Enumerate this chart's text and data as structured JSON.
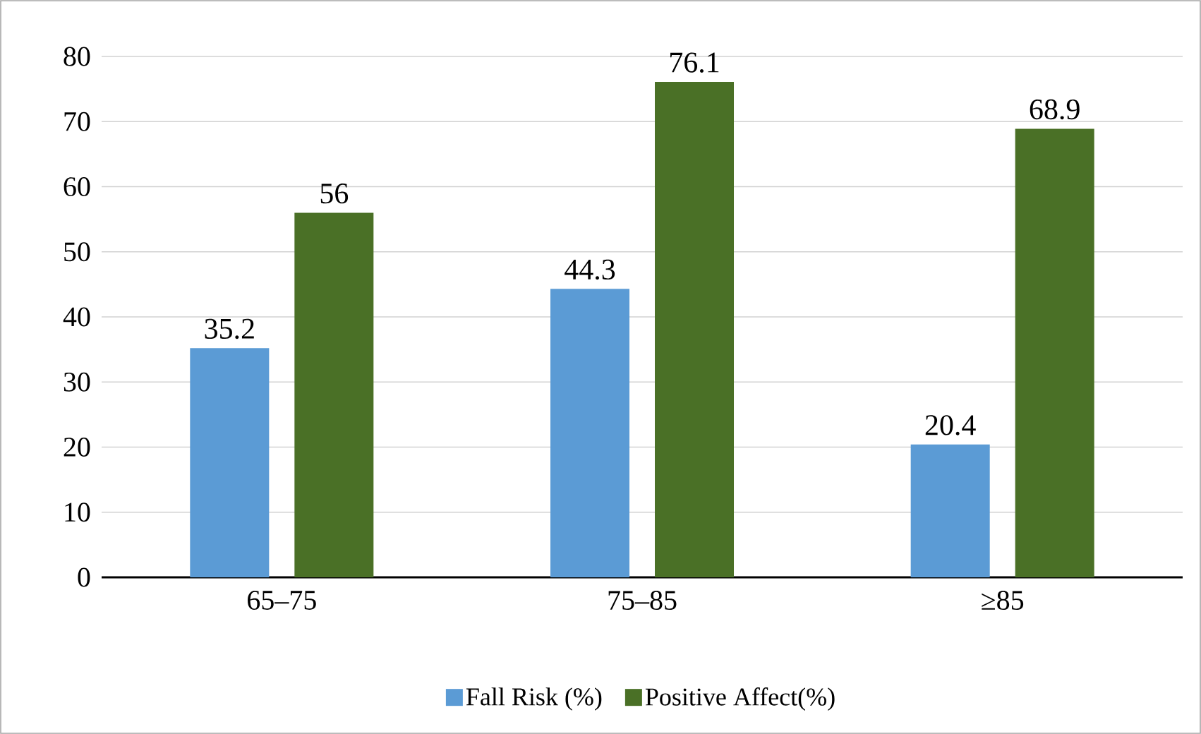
{
  "chart_data": {
    "type": "bar",
    "categories": [
      "65–75",
      "75–85",
      "≥85"
    ],
    "series": [
      {
        "name": "Fall Risk (%)",
        "color": "#5b9bd5",
        "values": [
          35.2,
          44.3,
          20.4
        ]
      },
      {
        "name": "Positive Affect(%)",
        "color": "#4a7026",
        "values": [
          56,
          76.1,
          68.9
        ]
      }
    ],
    "ylim": [
      0,
      80
    ],
    "yticks": [
      0,
      10,
      20,
      30,
      40,
      50,
      60,
      70,
      80
    ],
    "grid": "y",
    "legend": "bottom",
    "data_labels": true
  }
}
